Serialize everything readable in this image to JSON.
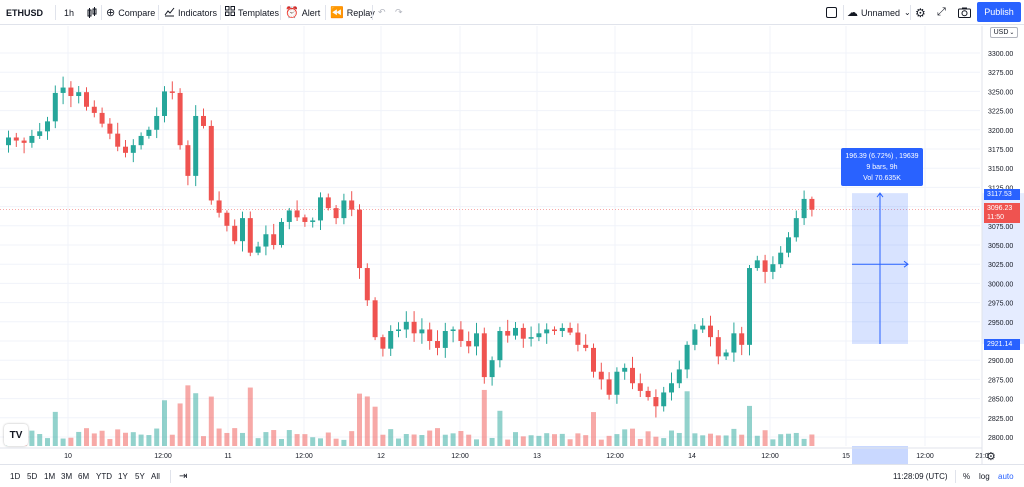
{
  "toolbar": {
    "symbol": "ETHUSD",
    "interval": "1h",
    "bar_style_icon": "candles-icon",
    "compare_label": "Compare",
    "indicators_label": "Indicators",
    "templates_label": "Templates",
    "alert_label": "Alert",
    "replay_label": "Replay",
    "layout_name": "Unnamed",
    "publish_label": "Publish"
  },
  "price_axis": {
    "currency": "USD",
    "ticks": [
      "3300.00",
      "3275.00",
      "3250.00",
      "3225.00",
      "3200.00",
      "3175.00",
      "3150.00",
      "3125.00",
      "3100.00",
      "3075.00",
      "3050.00",
      "3025.00",
      "3000.00",
      "2975.00",
      "2950.00",
      "2925.00",
      "2900.00",
      "2875.00",
      "2850.00",
      "2825.00",
      "2800.00"
    ],
    "last_price": "3096.23",
    "countdown": "11:50",
    "measure_high": "3117.53",
    "measure_low": "2921.14"
  },
  "time_axis": {
    "ticks": [
      "10",
      "12:00",
      "11",
      "12:00",
      "12",
      "12:00",
      "13",
      "12:00",
      "14",
      "12:00",
      "15",
      "12:00",
      "21:0"
    ]
  },
  "measure": {
    "line1": "196.39 (6.72%) , 19639",
    "line2": "9 bars, 9h",
    "line3": "Vol 70.635K"
  },
  "bottom": {
    "ranges": [
      "1D",
      "5D",
      "1M",
      "3M",
      "6M",
      "YTD",
      "1Y",
      "5Y",
      "All"
    ],
    "time": "11:28:09 (UTC)",
    "percent": "%",
    "log": "log",
    "auto": "auto"
  },
  "colors": {
    "up": "#26a69a",
    "down": "#ef5350",
    "accent": "#2962ff"
  },
  "chart_data": {
    "type": "candlestick",
    "symbol": "ETHUSD",
    "interval": "1h",
    "ylim": [
      2790,
      3320
    ],
    "ohlc_close": [
      3190,
      3186,
      3183,
      3192,
      3198,
      3211,
      3248,
      3255,
      3244,
      3249,
      3230,
      3222,
      3208,
      3195,
      3178,
      3170,
      3180,
      3192,
      3200,
      3218,
      3250,
      3248,
      3180,
      3140,
      3218,
      3205,
      3108,
      3092,
      3075,
      3055,
      3085,
      3040,
      3048,
      3064,
      3050,
      3080,
      3095,
      3086,
      3080,
      3082,
      3112,
      3098,
      3085,
      3108,
      3096,
      3020,
      2978,
      2930,
      2915,
      2938,
      2940,
      2950,
      2935,
      2940,
      2925,
      2916,
      2938,
      2940,
      2925,
      2918,
      2935,
      2878,
      2900,
      2938,
      2932,
      2942,
      2928,
      2930,
      2935,
      2940,
      2938,
      2942,
      2936,
      2920,
      2916,
      2885,
      2875,
      2855,
      2885,
      2890,
      2870,
      2860,
      2852,
      2840,
      2858,
      2870,
      2888,
      2920,
      2940,
      2945,
      2930,
      2905,
      2910,
      2935,
      2920,
      3020,
      3030,
      3015,
      3025,
      3040,
      3060,
      3085,
      3110,
      3096
    ],
    "volume_note": "per-bar volume shown as histogram"
  }
}
